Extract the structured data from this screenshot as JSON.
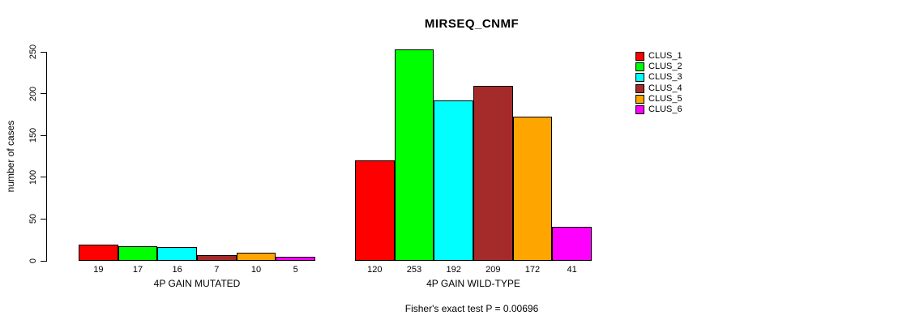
{
  "chart_data": {
    "type": "bar",
    "title": "MIRSEQ_CNMF",
    "xlabel": "",
    "ylabel": "number of cases",
    "ylim": [
      0,
      250
    ],
    "yticks": [
      0,
      50,
      100,
      150,
      200,
      250
    ],
    "categories": [
      "4P GAIN MUTATED",
      "4P GAIN WILD-TYPE"
    ],
    "series": [
      {
        "name": "CLUS_1",
        "color": "#ff0000",
        "values": [
          19,
          120
        ]
      },
      {
        "name": "CLUS_2",
        "color": "#00ff00",
        "values": [
          17,
          253
        ]
      },
      {
        "name": "CLUS_3",
        "color": "#00ffff",
        "values": [
          16,
          192
        ]
      },
      {
        "name": "CLUS_4",
        "color": "#a52a2a",
        "values": [
          7,
          209
        ]
      },
      {
        "name": "CLUS_5",
        "color": "#ffa500",
        "values": [
          10,
          172
        ]
      },
      {
        "name": "CLUS_6",
        "color": "#ff00ff",
        "values": [
          5,
          41
        ]
      }
    ],
    "bar_value_labels": true,
    "grid": false,
    "legend_position": "right",
    "annotation": "Fisher's exact test P = 0.00696"
  }
}
